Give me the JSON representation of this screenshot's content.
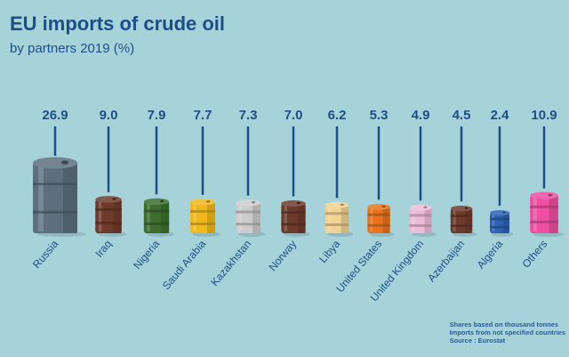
{
  "chart_data": {
    "type": "bar",
    "title": "EU imports of crude oil",
    "subtitle": "by partners 2019 (%)",
    "categories": [
      "Russia",
      "Iraq",
      "Nigeria",
      "Saudi Arabia",
      "Kazakhstan",
      "Norway",
      "Libya",
      "United States",
      "United Kingdom",
      "Azerbaijan",
      "Algeria",
      "Others"
    ],
    "values": [
      "26.9",
      "9.0",
      "7.9",
      "7.7",
      "7.3",
      "7.0",
      "6.2",
      "5.3",
      "4.9",
      "4.5",
      "2.4",
      "10.9"
    ],
    "barrel_colors": [
      "#5b6f7c",
      "#6e3a2c",
      "#3d6e2e",
      "#f0b81c",
      "#cccccc",
      "#6e3a2c",
      "#f0d292",
      "#e8731c",
      "#eebbd6",
      "#6e3a2c",
      "#2c63b4",
      "#ee4fa2"
    ],
    "xlabel": "",
    "ylabel": "",
    "grid": false,
    "legend": "none"
  },
  "notes": [
    "Shares based on thousand tonnes",
    "Imports from not specified countries",
    "Source : Eurostat"
  ]
}
